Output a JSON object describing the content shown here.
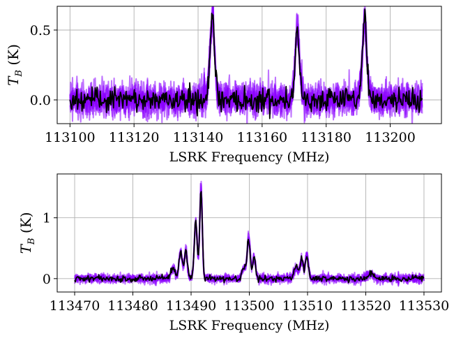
{
  "chart_data": [
    {
      "type": "line",
      "xlabel": "LSRK Frequency (MHz)",
      "ylabel_main": "T",
      "ylabel_sub": "B",
      "ylabel_unit": " (K)",
      "xlim": [
        113096,
        113216
      ],
      "ylim": [
        -0.17,
        0.67
      ],
      "xticks": [
        113100,
        113120,
        113140,
        113160,
        113180,
        113200
      ],
      "yticks": [
        0.0,
        0.5
      ],
      "ytick_labels": [
        "0.0",
        "0.5"
      ],
      "grid": true,
      "x_range": [
        113100,
        113210
      ],
      "noise": 0.055,
      "peaks": [
        {
          "center": 113144.5,
          "amplitude": 0.55,
          "width": 0.45
        },
        {
          "center": 113143.6,
          "amplitude": 0.2,
          "width": 0.5
        },
        {
          "center": 113145.4,
          "amplitude": 0.18,
          "width": 0.5
        },
        {
          "center": 113171.0,
          "amplitude": 0.45,
          "width": 0.45
        },
        {
          "center": 113170.2,
          "amplitude": 0.15,
          "width": 0.5
        },
        {
          "center": 113171.9,
          "amplitude": 0.14,
          "width": 0.5
        },
        {
          "center": 113192.0,
          "amplitude": 0.52,
          "width": 0.45
        },
        {
          "center": 113191.2,
          "amplitude": 0.18,
          "width": 0.5
        },
        {
          "center": 113192.9,
          "amplitude": 0.16,
          "width": 0.5
        }
      ],
      "series": [
        {
          "role": "samples",
          "color": "#8b00ff"
        },
        {
          "role": "data",
          "color": "#000000"
        }
      ]
    },
    {
      "type": "line",
      "xlabel": "LSRK Frequency (MHz)",
      "ylabel_main": "T",
      "ylabel_sub": "B",
      "ylabel_unit": " (K)",
      "xlim": [
        113467,
        113533
      ],
      "ylim": [
        -0.22,
        1.72
      ],
      "xticks": [
        113470,
        113480,
        113490,
        113500,
        113510,
        113520,
        113530
      ],
      "yticks": [
        0,
        1
      ],
      "ytick_labels": [
        "0",
        "1"
      ],
      "grid": true,
      "x_range": [
        113470,
        113530
      ],
      "noise": 0.035,
      "peaks": [
        {
          "center": 113486.9,
          "amplitude": 0.18,
          "width": 0.35
        },
        {
          "center": 113488.2,
          "amplitude": 0.45,
          "width": 0.28
        },
        {
          "center": 113489.1,
          "amplitude": 0.45,
          "width": 0.25
        },
        {
          "center": 113490.8,
          "amplitude": 0.95,
          "width": 0.25
        },
        {
          "center": 113491.7,
          "amplitude": 1.5,
          "width": 0.22
        },
        {
          "center": 113499.1,
          "amplitude": 0.18,
          "width": 0.35
        },
        {
          "center": 113499.9,
          "amplitude": 0.65,
          "width": 0.25
        },
        {
          "center": 113500.8,
          "amplitude": 0.35,
          "width": 0.25
        },
        {
          "center": 113508.0,
          "amplitude": 0.18,
          "width": 0.35
        },
        {
          "center": 113509.0,
          "amplitude": 0.32,
          "width": 0.28
        },
        {
          "center": 113509.9,
          "amplitude": 0.38,
          "width": 0.25
        },
        {
          "center": 113520.8,
          "amplitude": 0.08,
          "width": 0.5
        }
      ],
      "series": [
        {
          "role": "samples",
          "color": "#8b00ff"
        },
        {
          "role": "data",
          "color": "#000000"
        }
      ]
    }
  ]
}
